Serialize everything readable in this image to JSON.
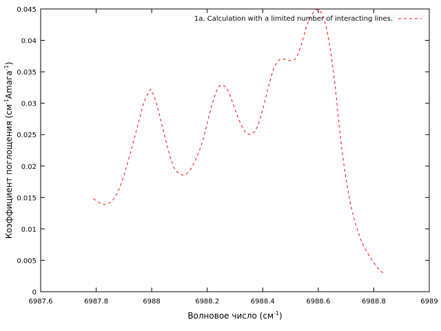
{
  "chart_data": {
    "type": "line",
    "xlabel": {
      "base": "Волновое число (см",
      "sup": "-1",
      "tail": ")"
    },
    "ylabel": {
      "base": "Коэффициент поглощения (см",
      "sup1": "-1",
      "mid": "Amaга",
      "sup2": "-1",
      "tail": ")"
    },
    "xlim": [
      6987.6,
      6989
    ],
    "ylim": [
      0,
      0.045
    ],
    "xticks": [
      6987.6,
      6987.8,
      6988,
      6988.2,
      6988.4,
      6988.6,
      6988.8,
      6989
    ],
    "xtick_labels": [
      "6987.6",
      "6987.8",
      "6988",
      "6988.2",
      "6988.4",
      "6988.6",
      "6988.8",
      "6989"
    ],
    "yticks": [
      0,
      0.005,
      0.01,
      0.015,
      0.02,
      0.025,
      0.03,
      0.035,
      0.04,
      0.045
    ],
    "ytick_labels": [
      "0",
      "0.005",
      "0.01",
      "0.015",
      "0.02",
      "0.025",
      "0.03",
      "0.035",
      "0.04",
      "0.045"
    ],
    "grid": false,
    "legend_position": "top-right",
    "series": [
      {
        "name": "1a. Calculation with a limited number of interacting lines.",
        "color": "#ff0000",
        "style": "dashed",
        "x": [
          6987.79,
          6987.81,
          6987.83,
          6987.85,
          6987.87,
          6987.89,
          6987.91,
          6987.93,
          6987.95,
          6987.97,
          6987.99,
          6988.0,
          6988.02,
          6988.04,
          6988.06,
          6988.08,
          6988.1,
          6988.12,
          6988.14,
          6988.16,
          6988.18,
          6988.2,
          6988.22,
          6988.24,
          6988.26,
          6988.28,
          6988.3,
          6988.32,
          6988.34,
          6988.36,
          6988.38,
          6988.4,
          6988.42,
          6988.44,
          6988.46,
          6988.48,
          6988.5,
          6988.52,
          6988.54,
          6988.56,
          6988.58,
          6988.6,
          6988.62,
          6988.64,
          6988.66,
          6988.68,
          6988.7,
          6988.72,
          6988.74,
          6988.76,
          6988.78,
          6988.8,
          6988.82,
          6988.84
        ],
        "y": [
          0.0148,
          0.0142,
          0.0139,
          0.0142,
          0.0152,
          0.0172,
          0.02,
          0.0232,
          0.0265,
          0.0298,
          0.0318,
          0.032,
          0.0295,
          0.026,
          0.0225,
          0.0198,
          0.0188,
          0.0186,
          0.0195,
          0.0212,
          0.0235,
          0.0268,
          0.0302,
          0.0325,
          0.0328,
          0.0315,
          0.029,
          0.0268,
          0.0253,
          0.0251,
          0.0262,
          0.029,
          0.0325,
          0.0355,
          0.0369,
          0.037,
          0.0368,
          0.0372,
          0.0395,
          0.0425,
          0.0443,
          0.0449,
          0.0435,
          0.0395,
          0.033,
          0.0245,
          0.018,
          0.0132,
          0.01,
          0.0076,
          0.006,
          0.0046,
          0.0035,
          0.0028
        ]
      }
    ]
  }
}
